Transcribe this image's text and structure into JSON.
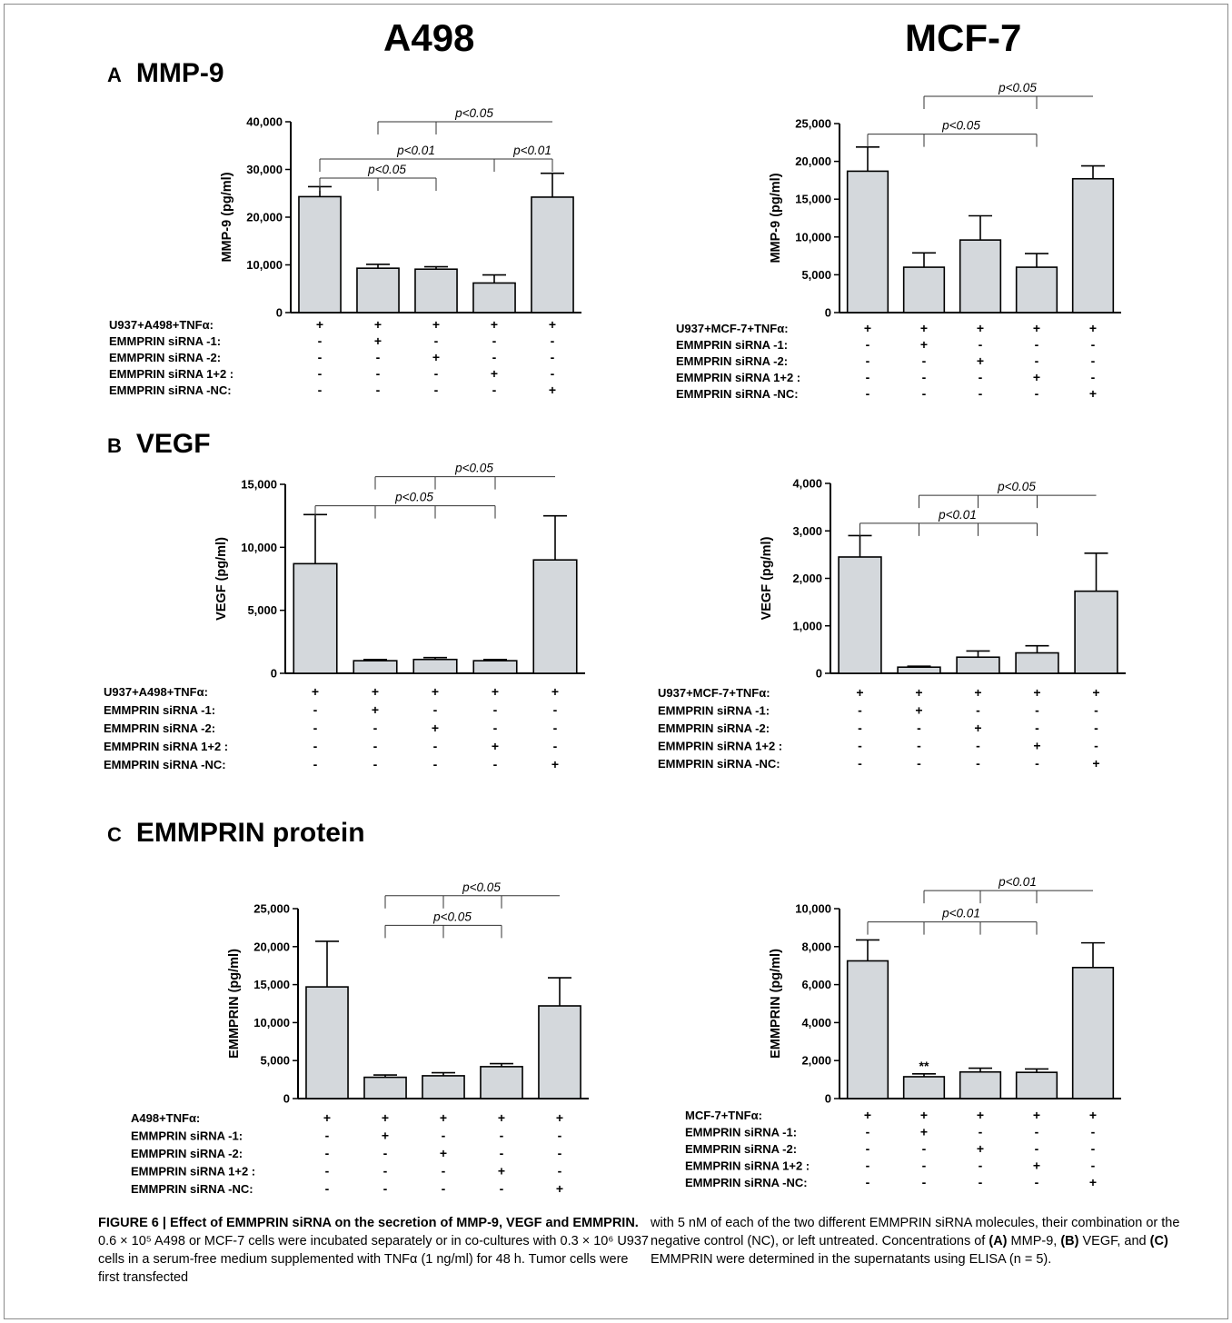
{
  "headers": {
    "left_column": "A498",
    "right_column": "MCF-7",
    "panel_a": {
      "letter": "A",
      "title": "MMP-9"
    },
    "panel_b": {
      "letter": "B",
      "title": "VEGF"
    },
    "panel_c": {
      "letter": "C",
      "title": "EMMPRIN protein"
    }
  },
  "colors": {
    "bar_fill": "#d4d8dc",
    "stroke": "#000000"
  },
  "chart_data": [
    {
      "id": "a498-mmp9",
      "type": "bar",
      "ylabel": "MMP-9 (pg/ml)",
      "ylim": [
        0,
        40000
      ],
      "yticks": [
        "0",
        "10,000",
        "20,000",
        "30,000",
        "40,000"
      ],
      "values": [
        24300,
        9300,
        9100,
        6200,
        24200
      ],
      "errors": [
        2100,
        800,
        500,
        1700,
        5000
      ],
      "conditions": [
        "U937+A498+TNFα:",
        "EMMPRIN siRNA -1:",
        "EMMPRIN siRNA -2:",
        "EMMPRIN siRNA 1+2 :",
        "EMMPRIN siRNA -NC:"
      ],
      "signs": [
        [
          "+",
          "+",
          "+",
          "+",
          "+"
        ],
        [
          "-",
          "+",
          "-",
          "-",
          "-"
        ],
        [
          "-",
          "-",
          "+",
          "-",
          "-"
        ],
        [
          "-",
          "-",
          "-",
          "+",
          "-"
        ],
        [
          "-",
          "-",
          "-",
          "-",
          "+"
        ]
      ],
      "annotations": [
        {
          "label": "p<0.05",
          "level": 40000,
          "from": 1,
          "to": 4,
          "drops": [
            1,
            2
          ]
        },
        {
          "label": "p<0.01",
          "level": 32200,
          "from": 0,
          "to": 3,
          "drops": [
            0,
            3
          ]
        },
        {
          "label": "p<0.01",
          "level": 32200,
          "from": 3,
          "to": 4,
          "drops": [
            3,
            4
          ]
        },
        {
          "label": "p<0.05",
          "level": 28200,
          "from": 0,
          "to": 2,
          "drops": [
            0,
            1,
            2
          ]
        }
      ],
      "stars": []
    },
    {
      "id": "mcf7-mmp9",
      "type": "bar",
      "ylabel": "MMP-9 (pg/ml)",
      "ylim": [
        0,
        25000
      ],
      "yticks": [
        "0",
        "5,000",
        "10,000",
        "15,000",
        "20,000",
        "25,000"
      ],
      "values": [
        18700,
        6000,
        9600,
        6000,
        17700
      ],
      "errors": [
        3200,
        1900,
        3200,
        1800,
        1700
      ],
      "conditions": [
        "U937+MCF-7+TNFα:",
        "EMMPRIN siRNA -1:",
        "EMMPRIN siRNA -2:",
        "EMMPRIN siRNA 1+2 :",
        "EMMPRIN siRNA -NC:"
      ],
      "signs": [
        [
          "+",
          "+",
          "+",
          "+",
          "+"
        ],
        [
          "-",
          "+",
          "-",
          "-",
          "-"
        ],
        [
          "-",
          "-",
          "+",
          "-",
          "-"
        ],
        [
          "-",
          "-",
          "-",
          "+",
          "-"
        ],
        [
          "-",
          "-",
          "-",
          "-",
          "+"
        ]
      ],
      "annotations": [
        {
          "label": "p<0.05",
          "level": 28600,
          "from": 1,
          "to": 4,
          "drops": [
            1,
            3
          ]
        },
        {
          "label": "p<0.05",
          "level": 23600,
          "from": 0,
          "to": 3,
          "drops": [
            0,
            1,
            3
          ]
        }
      ],
      "stars": []
    },
    {
      "id": "a498-vegf",
      "type": "bar",
      "ylabel": "VEGF (pg/ml)",
      "ylim": [
        0,
        15000
      ],
      "yticks": [
        "0",
        "5,000",
        "10,000",
        "15,000"
      ],
      "values": [
        8700,
        1000,
        1100,
        1000,
        9000
      ],
      "errors": [
        3900,
        100,
        150,
        100,
        3500
      ],
      "conditions": [
        "U937+A498+TNFα:",
        "EMMPRIN siRNA -1:",
        "EMMPRIN siRNA -2:",
        "EMMPRIN siRNA 1+2 :",
        "EMMPRIN siRNA -NC:"
      ],
      "signs": [
        [
          "+",
          "+",
          "+",
          "+",
          "+"
        ],
        [
          "-",
          "+",
          "-",
          "-",
          "-"
        ],
        [
          "-",
          "-",
          "+",
          "-",
          "-"
        ],
        [
          "-",
          "-",
          "-",
          "+",
          "-"
        ],
        [
          "-",
          "-",
          "-",
          "-",
          "+"
        ]
      ],
      "annotations": [
        {
          "label": "p<0.05",
          "level": 15600,
          "from": 1,
          "to": 4,
          "drops": [
            1,
            2,
            3
          ]
        },
        {
          "label": "p<0.05",
          "level": 13300,
          "from": 0,
          "to": 3,
          "drops": [
            0,
            1,
            2,
            3
          ]
        }
      ],
      "stars": []
    },
    {
      "id": "mcf7-vegf",
      "type": "bar",
      "ylabel": "VEGF (pg/ml)",
      "ylim": [
        0,
        4000
      ],
      "yticks": [
        "0",
        "1,000",
        "2,000",
        "3,000",
        "4,000"
      ],
      "values": [
        2450,
        130,
        340,
        430,
        1730
      ],
      "errors": [
        450,
        20,
        130,
        150,
        800
      ],
      "conditions": [
        "U937+MCF-7+TNFα:",
        "EMMPRIN siRNA -1:",
        "EMMPRIN siRNA -2:",
        "EMMPRIN siRNA 1+2 :",
        "EMMPRIN siRNA -NC:"
      ],
      "signs": [
        [
          "+",
          "+",
          "+",
          "+",
          "+"
        ],
        [
          "-",
          "+",
          "-",
          "-",
          "-"
        ],
        [
          "-",
          "-",
          "+",
          "-",
          "-"
        ],
        [
          "-",
          "-",
          "-",
          "+",
          "-"
        ],
        [
          "-",
          "-",
          "-",
          "-",
          "+"
        ]
      ],
      "annotations": [
        {
          "label": "p<0.05",
          "level": 3750,
          "from": 1,
          "to": 4,
          "drops": [
            1,
            2,
            3
          ]
        },
        {
          "label": "p<0.01",
          "level": 3160,
          "from": 0,
          "to": 3,
          "drops": [
            0,
            1,
            2,
            3
          ]
        }
      ],
      "stars": []
    },
    {
      "id": "a498-emmprin",
      "type": "bar",
      "ylabel": "EMMPRIN (pg/ml)",
      "ylim": [
        0,
        25000
      ],
      "yticks": [
        "0",
        "5,000",
        "10,000",
        "15,000",
        "20,000",
        "25,000"
      ],
      "values": [
        14700,
        2800,
        3000,
        4200,
        12200
      ],
      "errors": [
        6000,
        300,
        400,
        400,
        3700
      ],
      "conditions": [
        "A498+TNFα:",
        "EMMPRIN siRNA -1:",
        "EMMPRIN siRNA -2:",
        "EMMPRIN siRNA 1+2 :",
        "EMMPRIN siRNA -NC:"
      ],
      "signs": [
        [
          "+",
          "+",
          "+",
          "+",
          "+"
        ],
        [
          "-",
          "+",
          "-",
          "-",
          "-"
        ],
        [
          "-",
          "-",
          "+",
          "-",
          "-"
        ],
        [
          "-",
          "-",
          "-",
          "+",
          "-"
        ],
        [
          "-",
          "-",
          "-",
          "-",
          "+"
        ]
      ],
      "annotations": [
        {
          "label": "p<0.05",
          "level": 26700,
          "from": 1,
          "to": 4,
          "drops": [
            1,
            2,
            3
          ]
        },
        {
          "label": "p<0.05",
          "level": 22800,
          "from": 1,
          "to": 3,
          "drops": [
            1,
            2,
            3
          ]
        }
      ],
      "stars": []
    },
    {
      "id": "mcf7-emmprin",
      "type": "bar",
      "ylabel": "EMMPRIN (pg/ml)",
      "ylim": [
        0,
        10000
      ],
      "yticks": [
        "0",
        "2,000",
        "4,000",
        "6,000",
        "8,000",
        "10,000"
      ],
      "values": [
        7250,
        1150,
        1400,
        1380,
        6900
      ],
      "errors": [
        1100,
        150,
        200,
        180,
        1300
      ],
      "conditions": [
        "MCF-7+TNFα:",
        "EMMPRIN siRNA -1:",
        "EMMPRIN siRNA -2:",
        "EMMPRIN siRNA 1+2 :",
        "EMMPRIN siRNA -NC:"
      ],
      "signs": [
        [
          "+",
          "+",
          "+",
          "+",
          "+"
        ],
        [
          "-",
          "+",
          "-",
          "-",
          "-"
        ],
        [
          "-",
          "-",
          "+",
          "-",
          "-"
        ],
        [
          "-",
          "-",
          "-",
          "+",
          "-"
        ],
        [
          "-",
          "-",
          "-",
          "-",
          "+"
        ]
      ],
      "annotations": [
        {
          "label": "p<0.01",
          "level": 10950,
          "from": 1,
          "to": 4,
          "drops": [
            1,
            2,
            3
          ]
        },
        {
          "label": "p<0.01",
          "level": 9300,
          "from": 0,
          "to": 3,
          "drops": [
            0,
            1,
            2,
            3
          ]
        }
      ],
      "stars": [
        {
          "index": 1,
          "label": "**"
        }
      ]
    }
  ],
  "caption": {
    "figure_label": "FIGURE 6 | Effect of EMMPRIN siRNA on the secretion of MMP-9, VEGF and EMMPRIN.",
    "left_text": "0.6 × 10⁵ A498 or MCF-7 cells were incubated separately or in co-cultures with 0.3 × 10⁶ U937 cells in a serum-free medium supplemented with TNFα (1 ng/ml) for 48 h. Tumor cells were first transfected",
    "right_text_1": "with 5 nM of each of the two different EMMPRIN siRNA molecules, their combination or the negative control (NC), or left untreated. Concentrations of",
    "ref_a": "(A)",
    "text_a": "MMP-9,",
    "ref_b": "(B)",
    "text_b": "VEGF, and",
    "ref_c": "(C)",
    "right_text_2": "EMMPRIN were determined in the supernatants using ELISA (n = 5)."
  }
}
